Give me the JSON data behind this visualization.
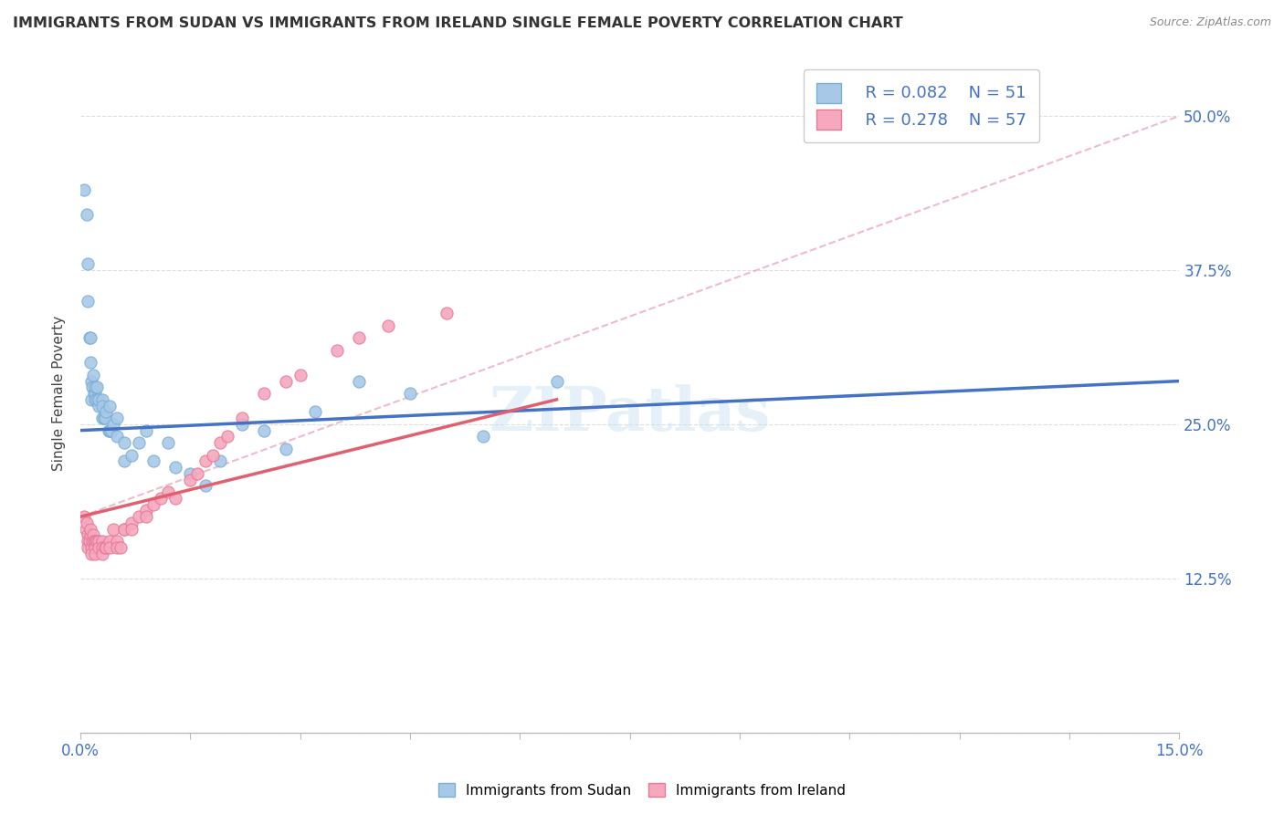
{
  "title": "IMMIGRANTS FROM SUDAN VS IMMIGRANTS FROM IRELAND SINGLE FEMALE POVERTY CORRELATION CHART",
  "source": "Source: ZipAtlas.com",
  "ylabel": "Single Female Poverty",
  "xlim": [
    0.0,
    0.15
  ],
  "ylim": [
    0.0,
    0.55
  ],
  "yticks": [
    0.0,
    0.125,
    0.25,
    0.375,
    0.5
  ],
  "ytick_labels": [
    "",
    "12.5%",
    "25.0%",
    "37.5%",
    "50.0%"
  ],
  "xticks": [
    0.0,
    0.015,
    0.03,
    0.045,
    0.06,
    0.075,
    0.09,
    0.105,
    0.12,
    0.135,
    0.15
  ],
  "xtick_labels": [
    "0.0%",
    "",
    "",
    "",
    "",
    "",
    "",
    "",
    "",
    "",
    "15.0%"
  ],
  "sudan_color": "#a8c8e8",
  "ireland_color": "#f5a8be",
  "sudan_edge_color": "#7aafd4",
  "ireland_edge_color": "#e87898",
  "sudan_line_color": "#4472c4",
  "ireland_line_color": "#e06070",
  "dashed_line_color": "#e8a0b0",
  "legend_R_sudan": "R = 0.082",
  "legend_N_sudan": "N = 51",
  "legend_R_ireland": "R = 0.278",
  "legend_N_ireland": "N = 57",
  "sudan_x": [
    0.0005,
    0.0008,
    0.001,
    0.001,
    0.0012,
    0.0013,
    0.0014,
    0.0015,
    0.0015,
    0.0016,
    0.0017,
    0.0018,
    0.002,
    0.002,
    0.002,
    0.0022,
    0.0022,
    0.0025,
    0.0025,
    0.003,
    0.003,
    0.003,
    0.0032,
    0.0033,
    0.0035,
    0.0038,
    0.004,
    0.004,
    0.0042,
    0.0045,
    0.005,
    0.005,
    0.006,
    0.006,
    0.007,
    0.008,
    0.009,
    0.01,
    0.012,
    0.013,
    0.015,
    0.017,
    0.019,
    0.022,
    0.025,
    0.028,
    0.032,
    0.038,
    0.045,
    0.055,
    0.065
  ],
  "sudan_y": [
    0.44,
    0.42,
    0.38,
    0.35,
    0.32,
    0.3,
    0.32,
    0.285,
    0.27,
    0.28,
    0.29,
    0.275,
    0.275,
    0.28,
    0.27,
    0.28,
    0.27,
    0.265,
    0.27,
    0.27,
    0.265,
    0.255,
    0.255,
    0.255,
    0.26,
    0.245,
    0.265,
    0.245,
    0.245,
    0.25,
    0.255,
    0.24,
    0.235,
    0.22,
    0.225,
    0.235,
    0.245,
    0.22,
    0.235,
    0.215,
    0.21,
    0.2,
    0.22,
    0.25,
    0.245,
    0.23,
    0.26,
    0.285,
    0.275,
    0.24,
    0.285
  ],
  "ireland_x": [
    0.0005,
    0.0007,
    0.0008,
    0.001,
    0.001,
    0.001,
    0.0012,
    0.0013,
    0.0014,
    0.0015,
    0.0015,
    0.0016,
    0.0017,
    0.0018,
    0.002,
    0.002,
    0.002,
    0.0022,
    0.0022,
    0.0025,
    0.0025,
    0.003,
    0.003,
    0.003,
    0.0033,
    0.0035,
    0.004,
    0.004,
    0.0045,
    0.005,
    0.005,
    0.0055,
    0.006,
    0.006,
    0.007,
    0.007,
    0.008,
    0.009,
    0.009,
    0.01,
    0.011,
    0.012,
    0.013,
    0.015,
    0.016,
    0.017,
    0.018,
    0.019,
    0.02,
    0.022,
    0.025,
    0.028,
    0.03,
    0.035,
    0.038,
    0.042,
    0.05
  ],
  "ireland_y": [
    0.175,
    0.165,
    0.17,
    0.16,
    0.155,
    0.15,
    0.155,
    0.16,
    0.165,
    0.15,
    0.145,
    0.155,
    0.16,
    0.155,
    0.155,
    0.15,
    0.145,
    0.155,
    0.155,
    0.155,
    0.15,
    0.155,
    0.15,
    0.145,
    0.15,
    0.15,
    0.155,
    0.15,
    0.165,
    0.155,
    0.15,
    0.15,
    0.165,
    0.165,
    0.17,
    0.165,
    0.175,
    0.18,
    0.175,
    0.185,
    0.19,
    0.195,
    0.19,
    0.205,
    0.21,
    0.22,
    0.225,
    0.235,
    0.24,
    0.255,
    0.275,
    0.285,
    0.29,
    0.31,
    0.32,
    0.33,
    0.34
  ],
  "watermark": "ZIPatlas",
  "background_color": "#ffffff",
  "grid_color": "#dddddd",
  "axis_label_color": "#4472c4",
  "title_color": "#333333",
  "title_fontsize": 11.5
}
